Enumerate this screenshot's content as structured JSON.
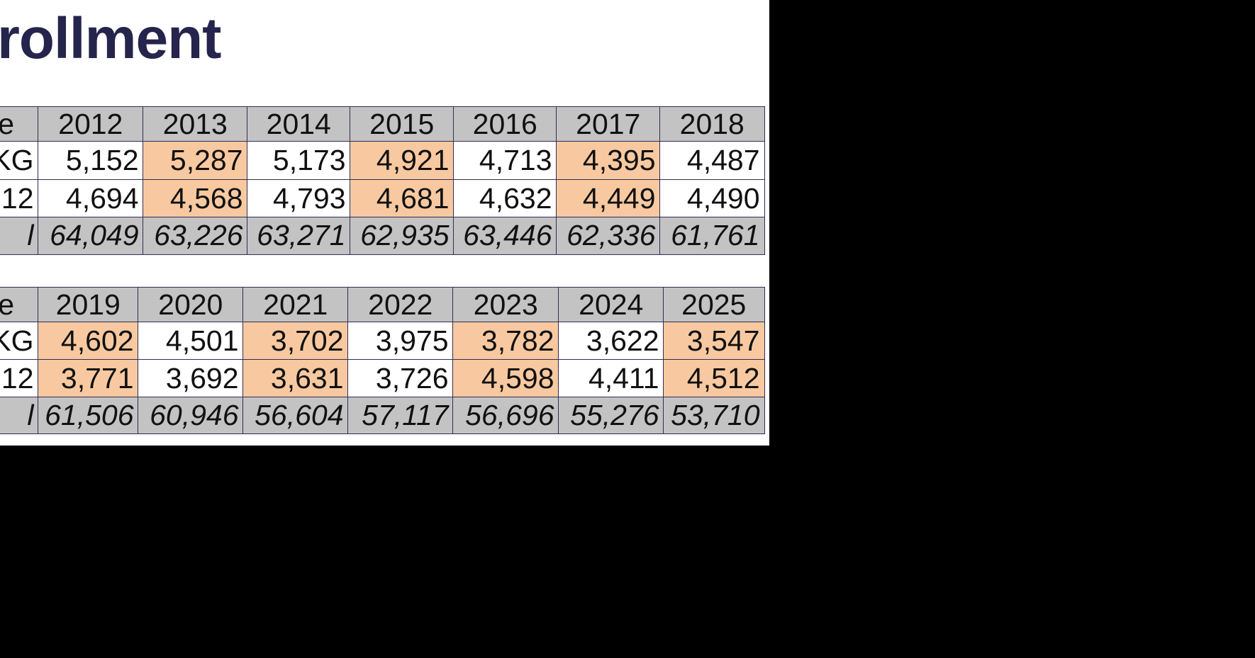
{
  "title": "rollment",
  "tables": [
    {
      "rows": [
        [
          "de",
          "2012",
          "2013",
          "2014",
          "2015",
          "2016",
          "2017",
          "2018"
        ],
        [
          "KG",
          "5,152",
          "5,287",
          "5,173",
          "4,921",
          "4,713",
          "4,395",
          "4,487"
        ],
        [
          "12",
          "4,694",
          "4,568",
          "4,793",
          "4,681",
          "4,632",
          "4,449",
          "4,490"
        ],
        [
          "l",
          "64,049",
          "63,226",
          "63,271",
          "62,935",
          "63,446",
          "62,336",
          "61,761"
        ]
      ]
    },
    {
      "rows": [
        [
          "de",
          "2019",
          "2020",
          "2021",
          "2022",
          "2023",
          "2024",
          "2025"
        ],
        [
          "KG",
          "4,602",
          "4,501",
          "3,702",
          "3,975",
          "3,782",
          "3,622",
          "3,547"
        ],
        [
          "12",
          "3,771",
          "3,692",
          "3,631",
          "3,726",
          "4,598",
          "4,411",
          "4,512"
        ],
        [
          "l",
          "61,506",
          "60,946",
          "56,604",
          "57,117",
          "56,696",
          "55,276",
          "53,710"
        ]
      ]
    }
  ]
}
